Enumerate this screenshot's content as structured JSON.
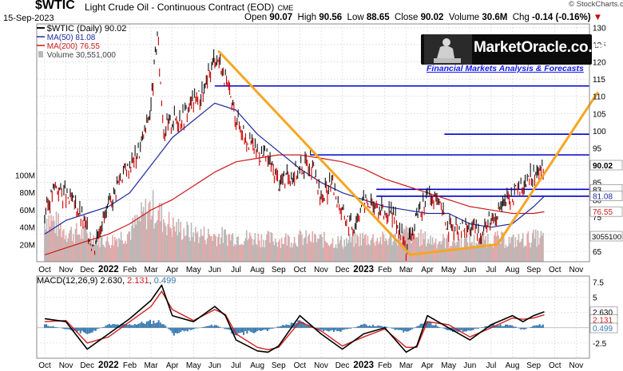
{
  "header": {
    "ticker": "$WTIC",
    "company": "Light Crude Oil - Continuous Contract (EOD)",
    "exchange": "CME",
    "date": "15-Sep-2023",
    "open_label": "Open",
    "open": "90.07",
    "high_label": "High",
    "high": "90.56",
    "low_label": "Low",
    "low": "88.65",
    "close_label": "Close",
    "close": "90.02",
    "volume_label": "Volume",
    "volume": "30.6M",
    "chg_label": "Chg",
    "chg": "-0.14 (-0.16%)",
    "chg_marker": "▼",
    "stockcharts": "© StockCharts.com"
  },
  "brand": {
    "title": "MarketOracle.co.uk",
    "subtitle": "Financial Markets Analysis & Forecasts"
  },
  "legend": {
    "main": "$WTIC (Daily) 90.02",
    "ma50": "MA(50) 81.08",
    "ma200": "MA(200) 76.55",
    "volume": "Volume 30,551,000"
  },
  "macd_legend": {
    "label": "MACD(12,26,9) ",
    "macd": "2.630",
    "signal": "2.131",
    "hist": "0.499"
  },
  "colors": {
    "price": "#111111",
    "price_down": "#cc0000",
    "ma50": "#1e2a9e",
    "ma200": "#cc1a1a",
    "volume_up": "#b8b8b8",
    "volume_down": "#e3a8a8",
    "hlines": "#0000cc",
    "trend": "#f5a623",
    "macd": "#000000",
    "signal": "#d42020",
    "histogram": "#3a7ab0",
    "grid": "#c8c8c8"
  },
  "chart_data": [
    {
      "type": "line",
      "title": "$WTIC (Daily)",
      "ylim": [
        62,
        131
      ],
      "y_ticks": [
        65,
        70,
        75,
        80,
        85,
        90,
        95,
        100,
        105,
        110,
        115,
        120,
        125,
        130
      ],
      "volume_ticks": [
        "20M",
        "40M",
        "60M",
        "80M",
        "100M"
      ],
      "volume_tick_values": [
        20,
        40,
        60,
        80,
        100
      ],
      "x_labels": [
        "Oct",
        "Nov",
        "Dec",
        "2022",
        "Feb",
        "Mar",
        "Apr",
        "May",
        "Jun",
        "Jul",
        "Aug",
        "Sep",
        "Oct",
        "Nov",
        "Dec",
        "2023",
        "Feb",
        "Mar",
        "Apr",
        "May",
        "Jun",
        "Jul",
        "Aug",
        "Sep",
        "Oct",
        "Nov"
      ],
      "x_months": [
        0,
        1,
        2,
        3,
        4,
        5,
        6,
        7,
        8,
        9,
        10,
        11,
        12,
        13,
        14,
        15,
        16,
        17,
        18,
        19,
        20,
        21,
        22,
        23,
        24,
        25
      ],
      "series": [
        {
          "name": "$WTIC",
          "x": [
            0,
            0.5,
            1,
            1.5,
            2,
            2.3,
            2.6,
            3,
            3.5,
            4,
            4.5,
            5,
            5.3,
            5.6,
            6,
            6.5,
            7,
            7.5,
            8,
            8.3,
            8.6,
            9,
            9.5,
            10,
            10.5,
            11,
            11.5,
            12,
            12.5,
            13,
            13.5,
            14,
            14.5,
            15,
            15.5,
            16,
            16.5,
            17,
            17.5,
            18,
            18.5,
            19,
            19.5,
            20,
            20.5,
            21,
            21.5,
            22,
            22.5,
            23,
            23.5
          ],
          "values": [
            76,
            84,
            81,
            78,
            71,
            66,
            73,
            77,
            86,
            90,
            95,
            107,
            128,
            100,
            103,
            104,
            109,
            111,
            122,
            119,
            112,
            104,
            98,
            94,
            92,
            85,
            87,
            89,
            91,
            80,
            85,
            76,
            72,
            80,
            78,
            76,
            75,
            66,
            74,
            81,
            79,
            72,
            71,
            72,
            70,
            75,
            78,
            81,
            84,
            87,
            90
          ]
        },
        {
          "name": "MA(50)",
          "x": [
            0,
            1,
            2,
            3,
            4,
            5,
            6,
            7,
            8,
            9,
            10,
            11,
            12,
            13,
            14,
            15,
            16,
            17,
            18,
            19,
            20,
            21,
            22,
            23,
            23.5
          ],
          "values": [
            70,
            74,
            76,
            78,
            82,
            90,
            98,
            103,
            108,
            106,
            99,
            94,
            89,
            85,
            82,
            80,
            78,
            77,
            76,
            76,
            73,
            72,
            73,
            78,
            81
          ]
        },
        {
          "name": "MA(200)",
          "x": [
            0,
            1,
            2,
            3,
            4,
            5,
            6,
            7,
            8,
            9,
            10,
            11,
            12,
            13,
            14,
            15,
            16,
            17,
            18,
            19,
            20,
            21,
            22,
            23,
            23.5
          ],
          "values": [
            64,
            66,
            68,
            70,
            73,
            77,
            80,
            84,
            88,
            91,
            92,
            93,
            93,
            92,
            91,
            89,
            86,
            84,
            82,
            80,
            78,
            77,
            76,
            76,
            76.5
          ]
        }
      ],
      "volume": {
        "x": [
          0,
          1,
          2,
          3,
          4,
          5,
          6,
          7,
          8,
          9,
          10,
          11,
          12,
          13,
          14,
          15,
          16,
          17,
          18,
          19,
          20,
          21,
          22,
          23,
          23.5
        ],
        "values": [
          60,
          38,
          35,
          25,
          38,
          70,
          45,
          36,
          33,
          32,
          30,
          28,
          30,
          28,
          25,
          30,
          28,
          36,
          28,
          26,
          26,
          30,
          26,
          30,
          30.6
        ]
      },
      "horizontal_lines": [
        113,
        99,
        93,
        83,
        81
      ],
      "trend_lines": [
        {
          "x": [
            8.2,
            17.2
          ],
          "y": [
            123,
            64
          ]
        },
        {
          "x": [
            17.2,
            21.3,
            26
          ],
          "y": [
            64,
            67,
            111
          ]
        }
      ],
      "right_labels": [
        "90.02",
        "83",
        "81.08",
        "76.55"
      ]
    },
    {
      "type": "line",
      "title": "MACD(12,26,9)",
      "ylim": [
        -5,
        8.5
      ],
      "y_ticks": [
        -2.5,
        2.5,
        5,
        7.5
      ],
      "x_labels": [
        "Oct",
        "Nov",
        "Dec",
        "2022",
        "Feb",
        "Mar",
        "Apr",
        "May",
        "Jun",
        "Jul",
        "Aug",
        "Sep",
        "Oct",
        "Nov",
        "Dec",
        "2023",
        "Feb",
        "Mar",
        "Apr",
        "May",
        "Jun",
        "Jul",
        "Aug",
        "Sep",
        "Oct",
        "Nov"
      ],
      "series": [
        {
          "name": "MACD",
          "x": [
            0,
            1,
            2,
            3,
            4,
            5,
            5.5,
            6,
            7,
            8,
            8.5,
            9,
            10,
            10.5,
            11,
            12,
            13,
            14,
            15,
            16,
            17,
            17.5,
            18,
            19,
            20,
            21,
            22,
            22.5,
            23,
            23.5
          ],
          "values": [
            1.5,
            1,
            -3.5,
            -1,
            1.5,
            4.5,
            7,
            2,
            1,
            3.5,
            2,
            -2,
            -3.8,
            -4,
            -3,
            2,
            -1,
            -3.5,
            -1,
            0,
            -4,
            -3,
            2,
            0,
            -2,
            0.5,
            2,
            1,
            2,
            2.63
          ]
        },
        {
          "name": "Signal",
          "x": [
            0,
            1,
            2,
            3,
            4,
            5,
            5.5,
            6,
            7,
            8,
            8.5,
            9,
            10,
            10.5,
            11,
            12,
            13,
            14,
            15,
            16,
            17,
            17.5,
            18,
            19,
            20,
            21,
            22,
            22.5,
            23,
            23.5
          ],
          "values": [
            1,
            1.2,
            -2.5,
            -1.5,
            1,
            3.5,
            6,
            3,
            1.2,
            3,
            2.2,
            -1,
            -3.2,
            -3.6,
            -3.2,
            1,
            -0.5,
            -3,
            -1.5,
            -0.2,
            -3.2,
            -3.2,
            1,
            0.5,
            -1.5,
            0,
            1.6,
            1.4,
            1.6,
            2.131
          ]
        },
        {
          "name": "Histogram",
          "x": [
            0,
            1,
            2,
            3,
            4,
            5,
            5.5,
            6,
            7,
            8,
            8.5,
            9,
            10,
            10.5,
            11,
            12,
            13,
            14,
            15,
            16,
            17,
            17.5,
            18,
            19,
            20,
            21,
            22,
            22.5,
            23,
            23.5
          ],
          "values": [
            0.5,
            -0.2,
            -1,
            0.5,
            0.5,
            1,
            1,
            -1,
            -0.2,
            0.5,
            -0.2,
            -1,
            -0.6,
            -0.4,
            0.2,
            1,
            -0.5,
            -0.5,
            0.5,
            0.2,
            -0.8,
            0.2,
            1,
            -0.5,
            -0.5,
            0.5,
            0.4,
            -0.4,
            0.4,
            0.499
          ]
        }
      ],
      "right_labels": [
        "2.630",
        "2.131",
        "0.499"
      ]
    }
  ]
}
